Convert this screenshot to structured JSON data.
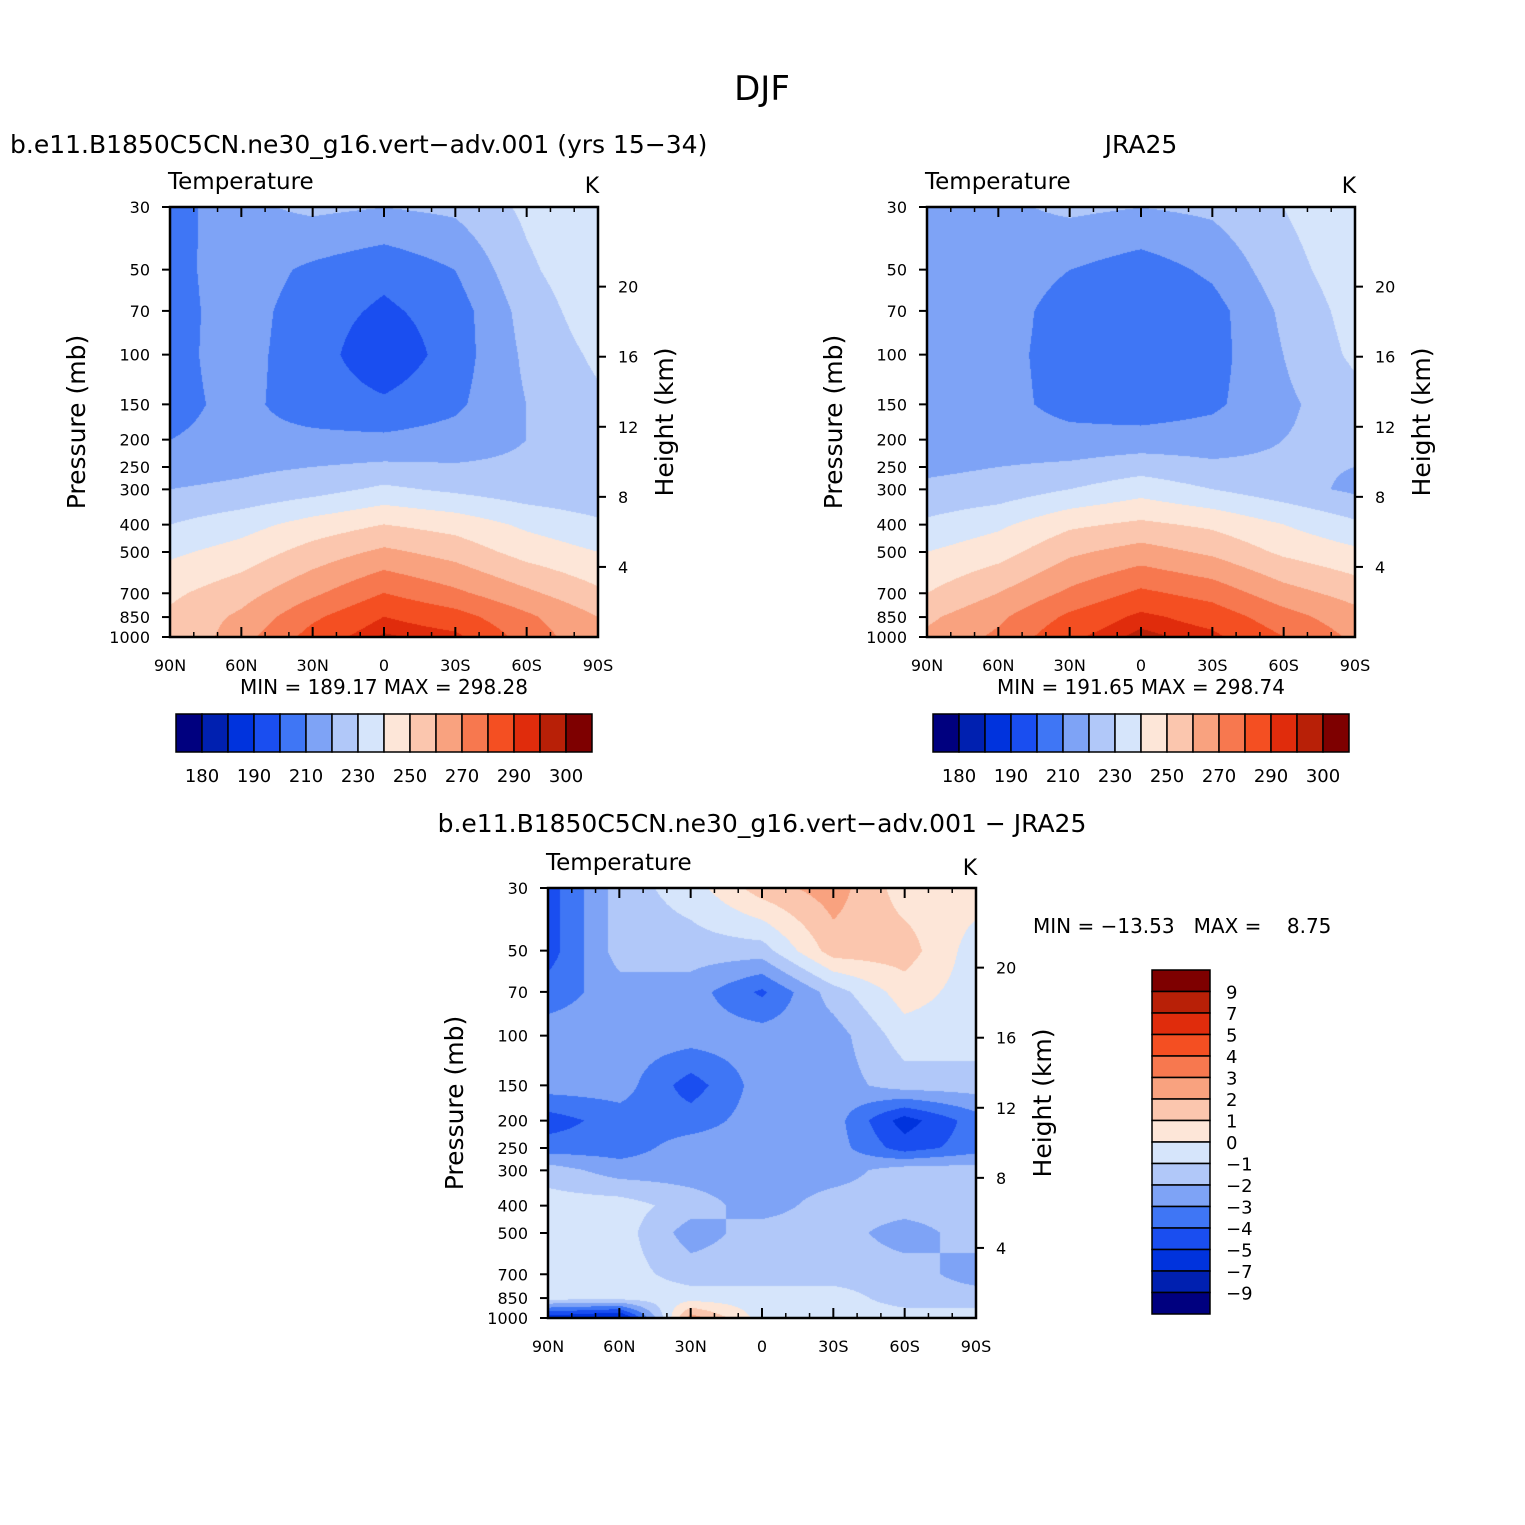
{
  "figure_title": "DJF",
  "palette": {
    "abs": [
      "#00007f",
      "#0020b0",
      "#0033dd",
      "#1a4ef0",
      "#3f76f5",
      "#7ea3f6",
      "#b1c8f9",
      "#d6e5fb",
      "#fde6d8",
      "#fbc6ae",
      "#f9a27f",
      "#f7784f",
      "#f44f22",
      "#e02c0c",
      "#b82007",
      "#7e0000"
    ],
    "diff": [
      "#00007f",
      "#0020b0",
      "#0033dd",
      "#1a4ef0",
      "#3f76f5",
      "#7ea3f6",
      "#b1c8f9",
      "#d6e5fb",
      "#fde6d8",
      "#fbc6ae",
      "#f9a27f",
      "#f7784f",
      "#f44f22",
      "#e02c0c",
      "#b82007",
      "#7e0000"
    ]
  },
  "axes": {
    "pressure_ticks": [
      "30",
      "50",
      "70",
      "100",
      "150",
      "200",
      "250",
      "300",
      "400",
      "500",
      "700",
      "850",
      "1000"
    ],
    "pressure_label": "Pressure (mb)",
    "height_ticks": [
      "20",
      "16",
      "12",
      "8",
      "4"
    ],
    "height_label": "Height (km)",
    "lat_ticks": [
      "90N",
      "60N",
      "30N",
      "0",
      "30S",
      "60S",
      "90S"
    ]
  },
  "panels": {
    "model": {
      "title": "b.e11.B1850C5CN.ne30_g16.vert−adv.001 (yrs 15−34)",
      "variable": "Temperature",
      "units": "K",
      "stats": "MIN =  189.17   MAX =  298.28",
      "colorbar_labels": [
        "180",
        "190",
        "210",
        "230",
        "250",
        "270",
        "290",
        "300"
      ]
    },
    "obs": {
      "title": "JRA25",
      "variable": "Temperature",
      "units": "K",
      "stats": "MIN =  191.65   MAX =  298.74",
      "colorbar_labels": [
        "180",
        "190",
        "210",
        "230",
        "250",
        "270",
        "290",
        "300"
      ]
    },
    "diff": {
      "title": "b.e11.B1850C5CN.ne30_g16.vert−adv.001 − JRA25",
      "variable": "Temperature",
      "units": "K",
      "stats": "MIN = −13.53   MAX =    8.75",
      "colorbar_labels": [
        "9",
        "7",
        "5",
        "4",
        "3",
        "2",
        "1",
        "0",
        "−1",
        "−2",
        "−3",
        "−4",
        "−5",
        "−7",
        "−9"
      ]
    }
  },
  "chart_data": [
    {
      "type": "heatmap",
      "title": "b.e11.B1850C5CN.ne30_g16.vert−adv.001 (yrs 15−34)",
      "ylabel": "Pressure (mb)",
      "y2label": "Height (km)",
      "x": [
        "90N",
        "60N",
        "30N",
        "0",
        "30S",
        "60S",
        "90S"
      ],
      "y": [
        30,
        50,
        70,
        100,
        150,
        200,
        250,
        300,
        400,
        500,
        700,
        850,
        1000
      ],
      "levels": [
        180,
        190,
        200,
        210,
        220,
        230,
        240,
        250,
        260,
        270,
        280,
        290,
        295,
        300
      ],
      "min": 189.17,
      "max": 298.28,
      "values": [
        [
          205,
          218,
          222,
          220,
          222,
          232,
          240
        ],
        [
          207,
          215,
          208,
          203,
          210,
          228,
          238
        ],
        [
          207,
          214,
          205,
          198,
          205,
          224,
          236
        ],
        [
          208,
          213,
          205,
          192,
          205,
          222,
          232
        ],
        [
          208,
          212,
          206,
          202,
          208,
          220,
          228
        ],
        [
          210,
          212,
          212,
          212,
          214,
          220,
          224
        ],
        [
          216,
          218,
          220,
          222,
          221,
          222,
          222
        ],
        [
          220,
          222,
          226,
          232,
          228,
          224,
          222
        ],
        [
          230,
          236,
          244,
          250,
          246,
          238,
          232
        ],
        [
          238,
          244,
          254,
          262,
          256,
          246,
          240
        ],
        [
          248,
          256,
          268,
          280,
          272,
          262,
          252
        ],
        [
          252,
          262,
          278,
          290,
          284,
          272,
          260
        ],
        [
          250,
          266,
          284,
          296,
          292,
          276,
          262
        ]
      ]
    },
    {
      "type": "heatmap",
      "title": "JRA25",
      "ylabel": "Pressure (mb)",
      "y2label": "Height (km)",
      "x": [
        "90N",
        "60N",
        "30N",
        "0",
        "30S",
        "60S",
        "90S"
      ],
      "y": [
        30,
        50,
        70,
        100,
        150,
        200,
        250,
        300,
        400,
        500,
        700,
        850,
        1000
      ],
      "levels": [
        180,
        190,
        200,
        210,
        220,
        230,
        240,
        250,
        260,
        270,
        280,
        290,
        295,
        300
      ],
      "min": 191.65,
      "max": 298.74,
      "values": [
        [
          212,
          218,
          222,
          220,
          222,
          230,
          238
        ],
        [
          212,
          215,
          210,
          205,
          212,
          226,
          236
        ],
        [
          212,
          214,
          206,
          200,
          206,
          222,
          234
        ],
        [
          212,
          213,
          206,
          200,
          206,
          220,
          232
        ],
        [
          212,
          213,
          207,
          204,
          208,
          218,
          226
        ],
        [
          214,
          214,
          213,
          214,
          215,
          220,
          224
        ],
        [
          218,
          220,
          222,
          226,
          222,
          222,
          220
        ],
        [
          222,
          224,
          230,
          236,
          230,
          224,
          218
        ],
        [
          232,
          238,
          248,
          252,
          248,
          240,
          232
        ],
        [
          240,
          246,
          258,
          264,
          258,
          248,
          242
        ],
        [
          250,
          260,
          272,
          282,
          276,
          264,
          256
        ],
        [
          258,
          268,
          282,
          292,
          286,
          274,
          264
        ],
        [
          262,
          272,
          288,
          297,
          292,
          280,
          268
        ]
      ]
    },
    {
      "type": "heatmap",
      "title": "b.e11.B1850C5CN.ne30_g16.vert−adv.001 − JRA25",
      "ylabel": "Pressure (mb)",
      "y2label": "Height (km)",
      "x": [
        "90N",
        "60N",
        "30N",
        "0",
        "30S",
        "60S",
        "90S"
      ],
      "y": [
        30,
        50,
        70,
        100,
        150,
        200,
        250,
        300,
        400,
        500,
        700,
        850,
        1000
      ],
      "levels": [
        -9,
        -7,
        -5,
        -4,
        -3,
        -2,
        -1,
        0,
        1,
        2,
        3,
        4,
        5,
        7,
        9
      ],
      "min": -13.53,
      "max": 8.75,
      "values": [
        [
          -4.5,
          -1.5,
          -0.5,
          1.5,
          2.5,
          0.5,
          0.5
        ],
        [
          -4.5,
          -1.5,
          -1.5,
          -1.5,
          1.5,
          1.5,
          -0.5
        ],
        [
          -3.5,
          -2.5,
          -2.5,
          -4.2,
          -1.5,
          0.5,
          -0.5
        ],
        [
          -2.5,
          -2.5,
          -2.5,
          -2.5,
          -2.5,
          -0.5,
          -0.5
        ],
        [
          -2.5,
          -2.5,
          -4.5,
          -2.5,
          -2.5,
          -1.5,
          -1.5
        ],
        [
          -4.5,
          -3.5,
          -3.5,
          -2.5,
          -2.5,
          -5.5,
          -3.5
        ],
        [
          -3.5,
          -3.5,
          -2.5,
          -2.5,
          -2.5,
          -4.5,
          -3.5
        ],
        [
          -1.5,
          -2.5,
          -2.5,
          -2.5,
          -2.5,
          -1.5,
          -1.5
        ],
        [
          -0.5,
          -0.5,
          -1.5,
          -2.5,
          -1.5,
          -1.5,
          -1.5
        ],
        [
          -0.5,
          -0.5,
          -2.5,
          -1.5,
          -1.5,
          -2.5,
          -1.5
        ],
        [
          -0.5,
          -0.5,
          -1.5,
          -1.5,
          -1.5,
          -1.5,
          -2.5
        ],
        [
          -0.5,
          -0.5,
          -0.5,
          -0.5,
          -0.5,
          -1.5,
          -1.5
        ],
        [
          -5.5,
          -6.5,
          2.5,
          -0.5,
          -0.5,
          -0.5,
          -0.5
        ]
      ]
    }
  ]
}
